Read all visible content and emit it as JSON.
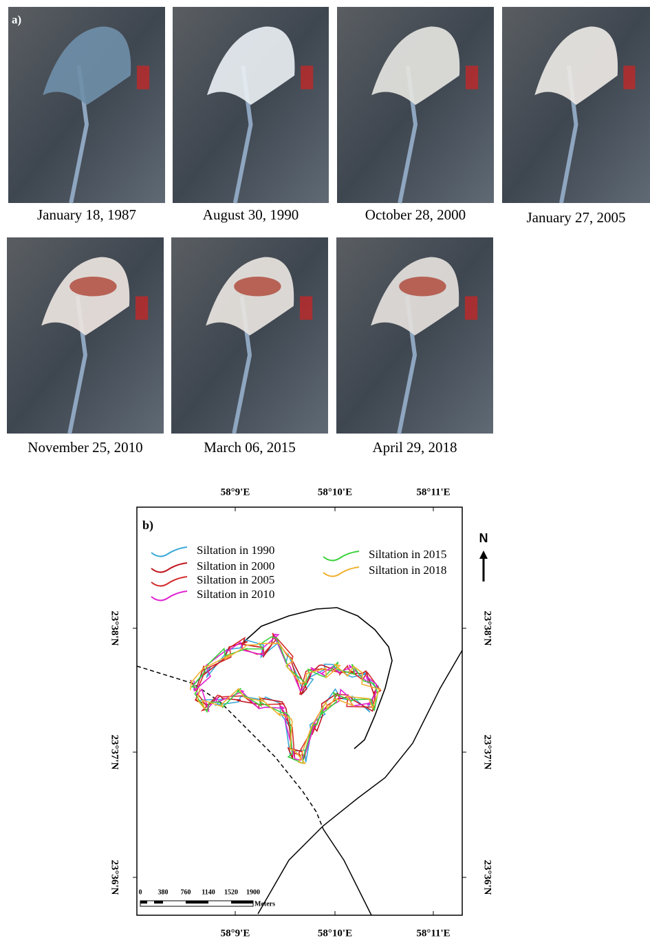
{
  "panel_a": {
    "label": "a)",
    "images": [
      {
        "caption": "January 18, 1987"
      },
      {
        "caption": "August 30, 1990"
      },
      {
        "caption": "October 28, 2000"
      },
      {
        "caption": "January 27, 2005"
      },
      {
        "caption": "November 25, 2010"
      },
      {
        "caption": "March 06, 2015"
      },
      {
        "caption": "April 29, 2018"
      }
    ]
  },
  "panel_b": {
    "label": "b)",
    "north": "N",
    "legend": [
      {
        "label": "Siltation in 1990",
        "color": "#3aa8d8"
      },
      {
        "label": "Siltation in 2000",
        "color": "#c0141e"
      },
      {
        "label": "Siltation in 2005",
        "color": "#d42a2a"
      },
      {
        "label": "Siltation in 2010",
        "color": "#e020d0"
      },
      {
        "label": "Siltation in 2015",
        "color": "#3cd23c"
      },
      {
        "label": "Siltation in 2018",
        "color": "#f0b030"
      }
    ],
    "top_ticks": [
      "58°9'E",
      "58°10'E",
      "58°11'E"
    ],
    "bottom_ticks": [
      "58°9'E",
      "58°10'E",
      "58°11'E"
    ],
    "left_ticks": [
      "23°38'N",
      "23°37'N",
      "23°36'N"
    ],
    "right_ticks": [
      "23°38'N",
      "23°37'N",
      "23°36'N"
    ],
    "scale_labels": [
      "0",
      "380",
      "760",
      "1140",
      "1520",
      "1900"
    ],
    "scale_unit": "Meters"
  }
}
